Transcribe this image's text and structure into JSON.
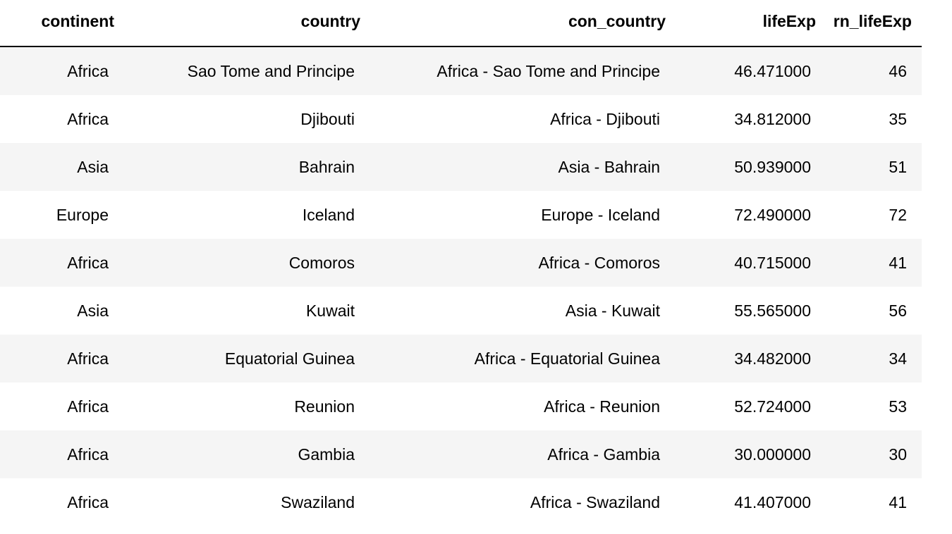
{
  "table": {
    "columns": [
      "continent",
      "country",
      "con_country",
      "lifeExp",
      "rn_lifeExp"
    ],
    "rows": [
      [
        "Africa",
        "Sao Tome and Principe",
        "Africa - Sao Tome and Principe",
        "46.471000",
        "46"
      ],
      [
        "Africa",
        "Djibouti",
        "Africa - Djibouti",
        "34.812000",
        "35"
      ],
      [
        "Asia",
        "Bahrain",
        "Asia - Bahrain",
        "50.939000",
        "51"
      ],
      [
        "Europe",
        "Iceland",
        "Europe - Iceland",
        "72.490000",
        "72"
      ],
      [
        "Africa",
        "Comoros",
        "Africa - Comoros",
        "40.715000",
        "41"
      ],
      [
        "Asia",
        "Kuwait",
        "Asia - Kuwait",
        "55.565000",
        "56"
      ],
      [
        "Africa",
        "Equatorial Guinea",
        "Africa - Equatorial Guinea",
        "34.482000",
        "34"
      ],
      [
        "Africa",
        "Reunion",
        "Africa - Reunion",
        "52.724000",
        "53"
      ],
      [
        "Africa",
        "Gambia",
        "Africa - Gambia",
        "30.000000",
        "30"
      ],
      [
        "Africa",
        "Swaziland",
        "Africa - Swaziland",
        "41.407000",
        "41"
      ]
    ]
  }
}
